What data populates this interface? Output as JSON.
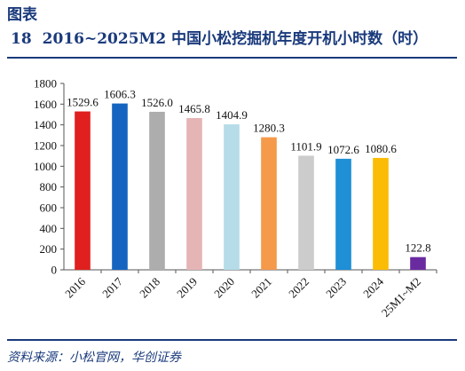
{
  "figure": {
    "label": "图表",
    "number": "18",
    "title": "2016~2025M2 中国小松挖掘机年度开机小时数（时）"
  },
  "source": "资料来源：小松官网，华创证券",
  "chart_data": {
    "type": "bar",
    "categories": [
      "2016",
      "2017",
      "2018",
      "2019",
      "2020",
      "2021",
      "2022",
      "2023",
      "2024",
      "25M1~M2"
    ],
    "values": [
      1529.6,
      1606.3,
      1526.0,
      1465.8,
      1404.9,
      1280.3,
      1101.9,
      1072.6,
      1080.6,
      122.8
    ],
    "value_labels": [
      "1529.6",
      "1606.3",
      "1526.0",
      "1465.8",
      "1404.9",
      "1280.3",
      "1101.9",
      "1072.6",
      "1080.6",
      "122.8"
    ],
    "colors": [
      "#e0201f",
      "#1565c0",
      "#adadad",
      "#e5b5b5",
      "#b5dce8",
      "#f49a4a",
      "#cccccc",
      "#1f8fd6",
      "#fbbc05",
      "#6a2aa0"
    ],
    "yticks": [
      "0",
      "200",
      "400",
      "600",
      "800",
      "1000",
      "1200",
      "1400",
      "1600",
      "1800"
    ],
    "ylim": [
      0,
      1800
    ],
    "xlabel": "",
    "ylabel": "",
    "grid": false,
    "legend": "none"
  }
}
